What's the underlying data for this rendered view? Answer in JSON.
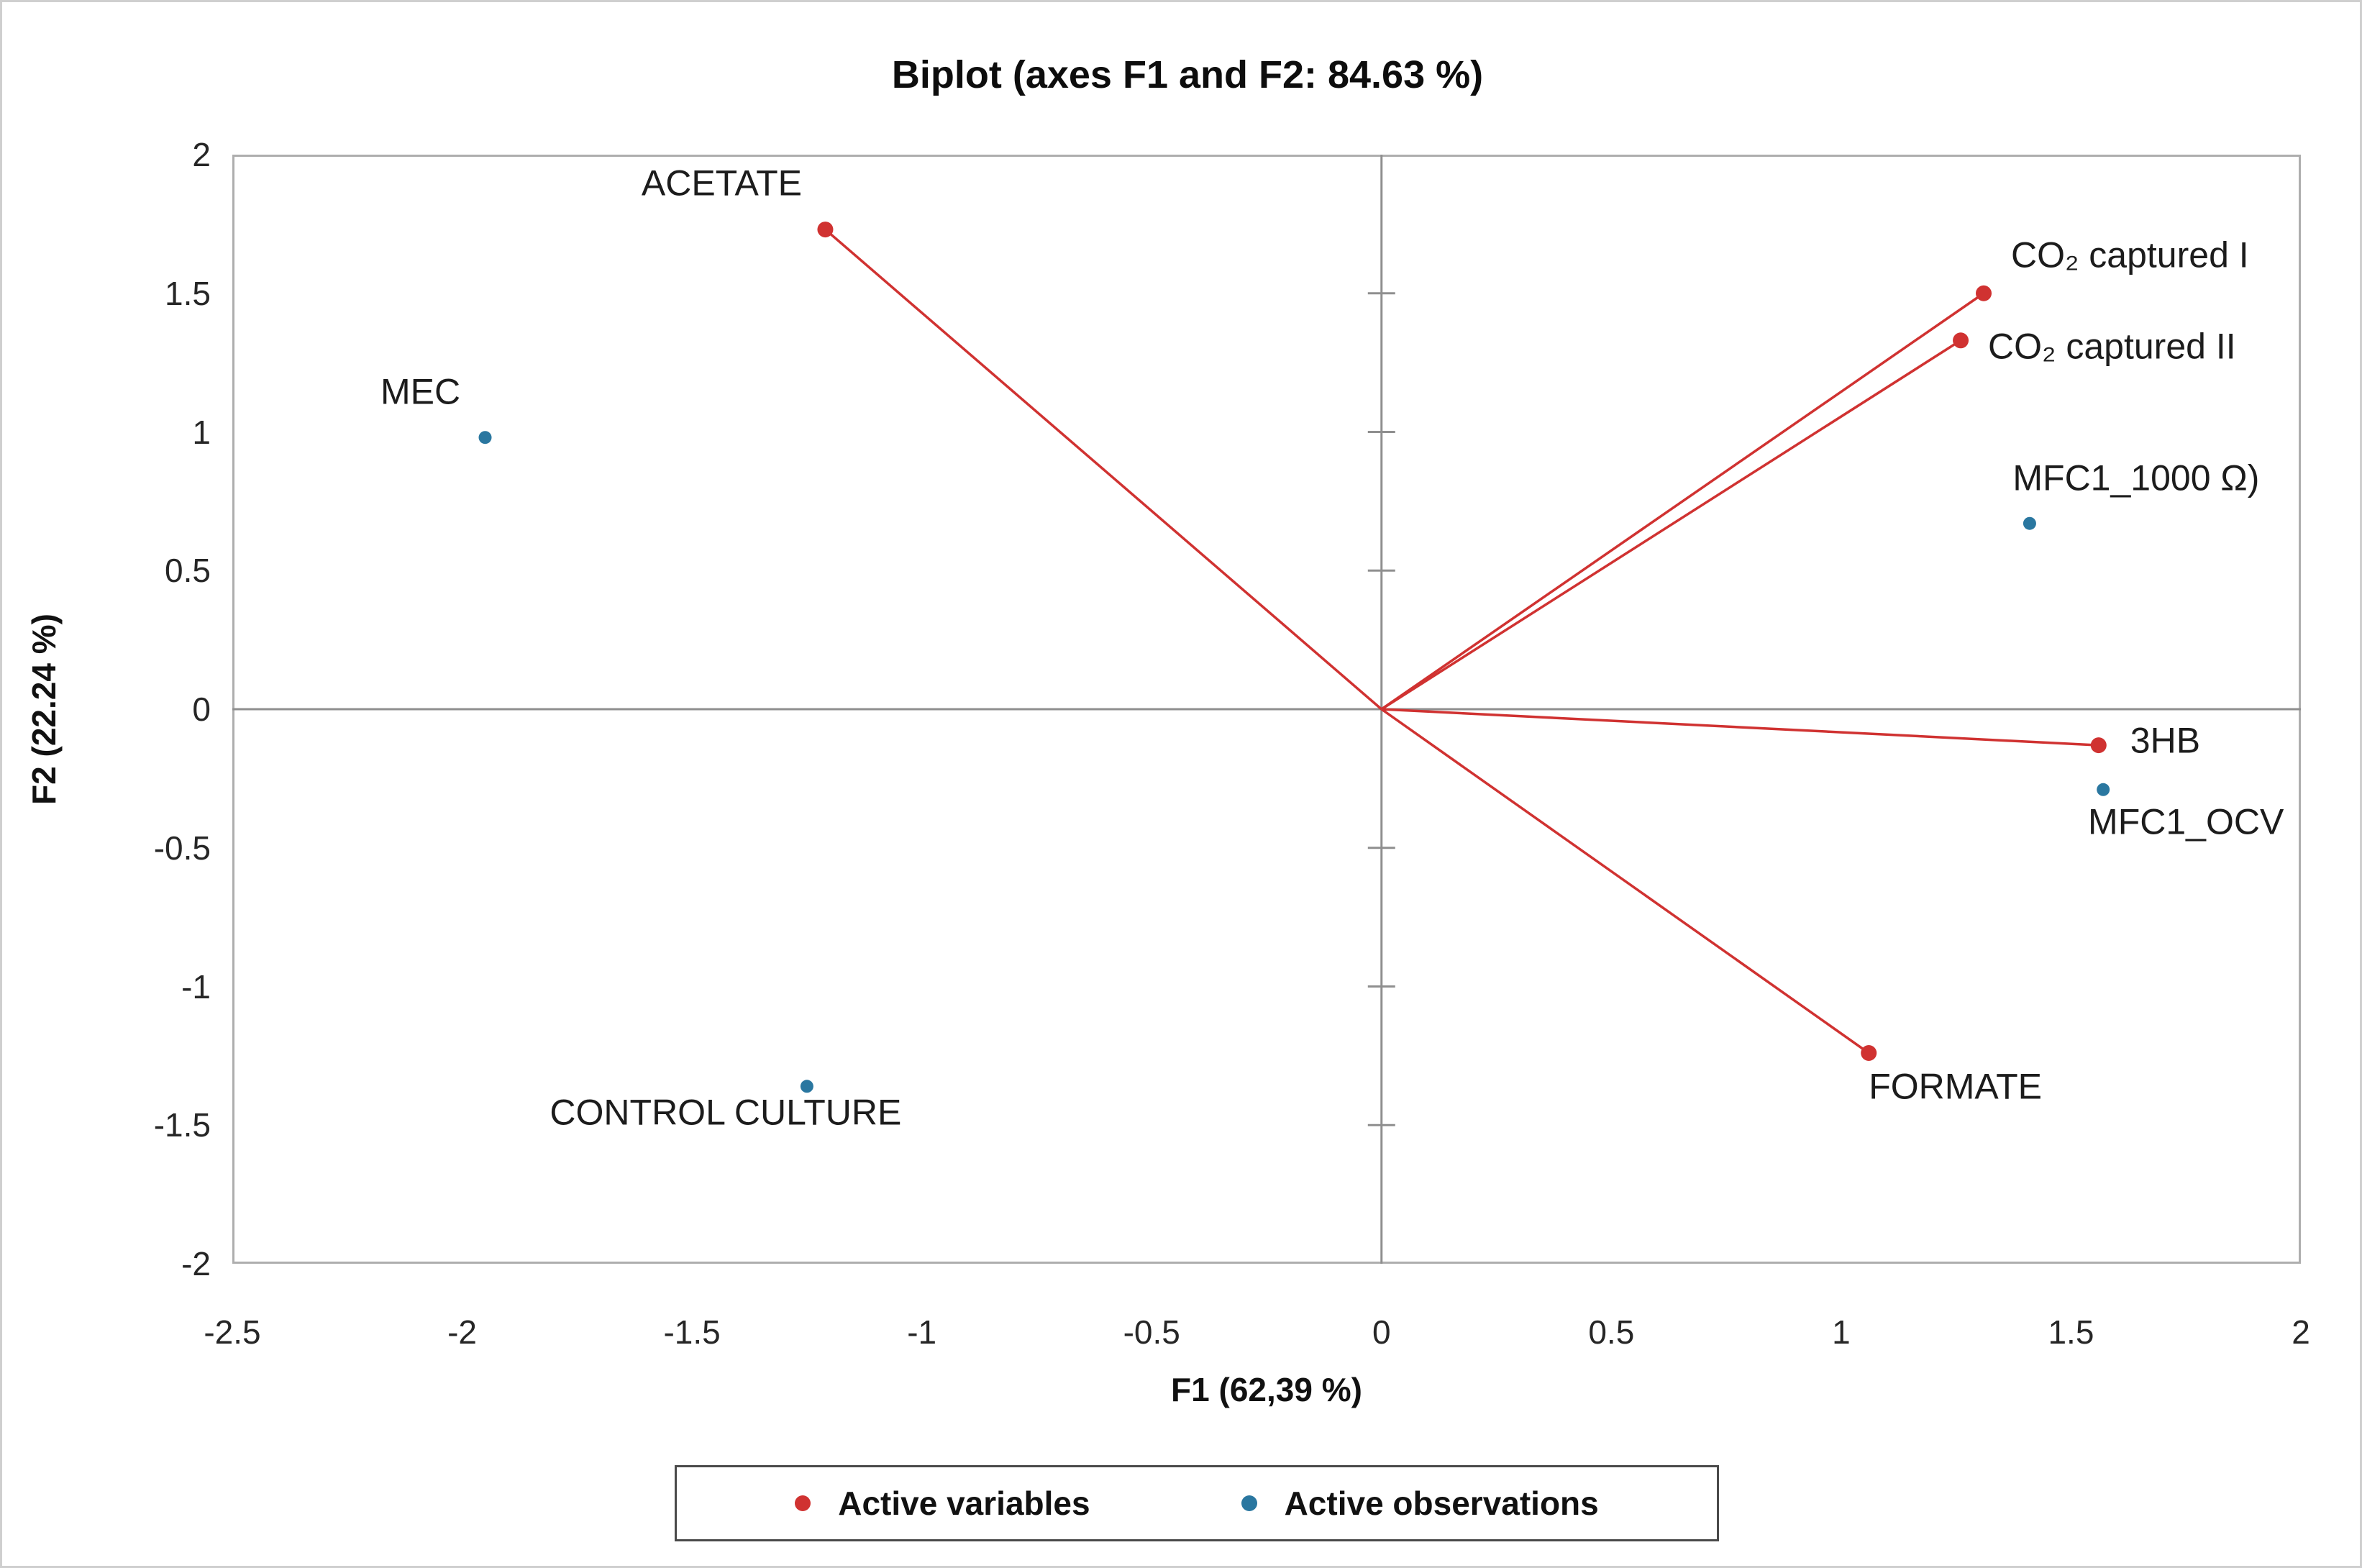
{
  "title": "Biplot (axes F1 and F2: 84.63 %)",
  "axes": {
    "x": {
      "label": "F1 (62,39 %)",
      "ticks": [
        {
          "v": -2.5,
          "label": "-2.5"
        },
        {
          "v": -2,
          "label": "-2"
        },
        {
          "v": -1.5,
          "label": "-1.5"
        },
        {
          "v": -1,
          "label": "-1"
        },
        {
          "v": -0.5,
          "label": "-0.5"
        },
        {
          "v": 0,
          "label": "0"
        },
        {
          "v": 0.5,
          "label": "0.5"
        },
        {
          "v": 1,
          "label": "1"
        },
        {
          "v": 1.5,
          "label": "1.5"
        },
        {
          "v": 2,
          "label": "2"
        }
      ]
    },
    "y": {
      "label": "F2 (22.24 %)",
      "ticks": [
        {
          "v": 2,
          "label": "2"
        },
        {
          "v": 1.5,
          "label": "1.5"
        },
        {
          "v": 1,
          "label": "1"
        },
        {
          "v": 0.5,
          "label": "0.5"
        },
        {
          "v": 0,
          "label": "0"
        },
        {
          "v": -0.5,
          "label": "-0.5"
        },
        {
          "v": -1,
          "label": "-1"
        },
        {
          "v": -1.5,
          "label": "-1.5"
        },
        {
          "v": -2,
          "label": "-2"
        }
      ]
    }
  },
  "colors": {
    "variables": "#d03231",
    "observations": "#2a77a0",
    "axis_line": "#8f8f8f",
    "plot_border": "#aeaeae",
    "legend_border": "#4a4a4a"
  },
  "legend": {
    "items": [
      {
        "label": "Active variables"
      },
      {
        "label": "Active observations"
      }
    ]
  },
  "chart_data": {
    "type": "scatter",
    "subtype": "pca-biplot",
    "title": "Biplot (axes F1 and F2: 84.63 %)",
    "xlabel": "F1 (62,39 %)",
    "ylabel": "F2 (22.24 %)",
    "xlim": [
      -2.5,
      2
    ],
    "ylim": [
      -2,
      2
    ],
    "tick_step": 0.5,
    "grid": false,
    "legend_position": "bottom",
    "series": [
      {
        "name": "Active variables",
        "marker": "vector",
        "color": "#d03231",
        "points": [
          {
            "label": "ACETATE",
            "x": -1.21,
            "y": 1.73,
            "label_dx": -144,
            "label_dy": -64,
            "anchor": "middle"
          },
          {
            "label": "CO₂ captured I",
            "x": 1.31,
            "y": 1.5,
            "label_dx": 38,
            "label_dy": -53,
            "anchor": "start"
          },
          {
            "label": "CO₂ captured II",
            "x": 1.26,
            "y": 1.33,
            "label_dx": 38,
            "label_dy": 9,
            "anchor": "start"
          },
          {
            "label": "3HB",
            "x": 1.56,
            "y": -0.13,
            "label_dx": 44,
            "label_dy": -6,
            "anchor": "start"
          },
          {
            "label": "FORMATE",
            "x": 1.06,
            "y": -1.24,
            "label_dx": 0,
            "label_dy": 47,
            "anchor": "start"
          }
        ]
      },
      {
        "name": "Active observations",
        "marker": "point",
        "color": "#2a77a0",
        "points": [
          {
            "label": "MEC",
            "x": -1.95,
            "y": 0.98,
            "label_dx": -90,
            "label_dy": -63,
            "anchor": "middle"
          },
          {
            "label": "MFC1_1000 Ω)",
            "x": 1.41,
            "y": 0.67,
            "label_dx": 148,
            "label_dy": -63,
            "anchor": "middle"
          },
          {
            "label": "MFC1_OCV",
            "x": 1.57,
            "y": -0.29,
            "label_dx": 115,
            "label_dy": 45,
            "anchor": "middle"
          },
          {
            "label": "CONTROL CULTURE",
            "x": -1.25,
            "y": -1.36,
            "label_dx": -113,
            "label_dy": 37,
            "anchor": "middle"
          }
        ]
      }
    ]
  }
}
